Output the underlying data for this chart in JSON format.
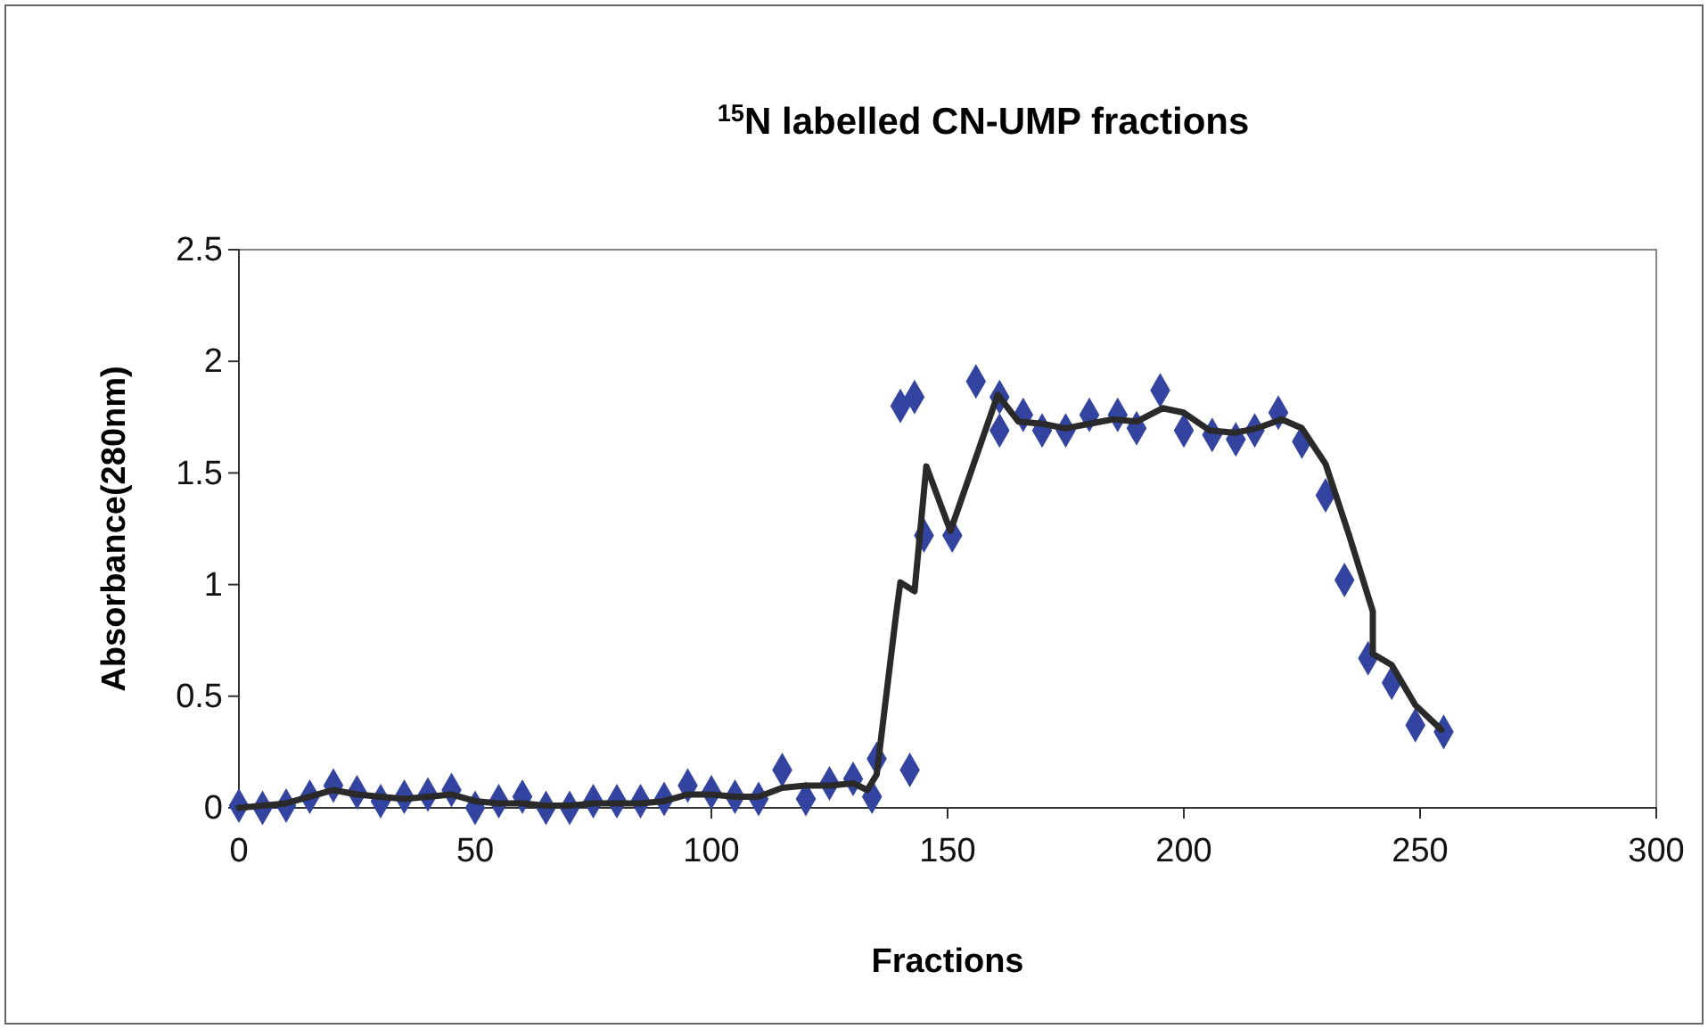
{
  "chart_data": {
    "type": "scatter",
    "title": "$^{15}$N labelled CN-UMP fractions",
    "xlabel": "Fractions",
    "ylabel": "Absorbance(280nm)",
    "xlim": [
      0,
      300
    ],
    "xticks": [
      0,
      50,
      100,
      150,
      200,
      250,
      300
    ],
    "ylim": [
      0,
      2.5
    ],
    "yticks": [
      0,
      0.5,
      1,
      1.5,
      2,
      2.5
    ],
    "grid": false,
    "series": [
      {
        "color": "#3344a0",
        "marker": "diamond",
        "x": [
          0,
          5,
          10,
          15,
          20,
          25,
          30,
          35,
          40,
          45,
          50,
          55,
          60,
          65,
          70,
          75,
          80,
          85,
          90,
          95,
          100,
          105,
          110,
          115,
          120,
          125,
          130,
          134,
          135,
          140,
          142,
          143,
          145,
          151,
          156,
          161,
          161,
          166,
          170,
          175,
          180,
          186,
          190,
          195,
          200,
          206,
          211,
          215,
          220,
          225,
          230,
          234,
          239,
          244,
          249,
          255
        ],
        "values": [
          0.01,
          0,
          0.01,
          0.05,
          0.1,
          0.07,
          0.03,
          0.05,
          0.06,
          0.08,
          0,
          0.03,
          0.05,
          0,
          0,
          0.03,
          0.03,
          0.03,
          0.04,
          0.1,
          0.07,
          0.05,
          0.04,
          0.17,
          0.04,
          0.11,
          0.13,
          0.05,
          0.22,
          1.8,
          0.17,
          1.84,
          1.22,
          1.22,
          1.91,
          1.84,
          1.69,
          1.76,
          1.69,
          1.69,
          1.76,
          1.76,
          1.7,
          1.87,
          1.69,
          1.67,
          1.65,
          1.69,
          1.77,
          1.64,
          1.4,
          1.02,
          0.67,
          0.56,
          0.37,
          0.34
        ]
      },
      {
        "type": "line",
        "color": "#2a2a2a",
        "marker": "none",
        "line_style": "solid",
        "x": [
          0,
          5,
          10,
          15,
          20,
          25,
          30,
          35,
          40,
          45,
          50,
          55,
          60,
          65,
          70,
          75,
          80,
          85,
          90,
          95,
          100,
          105,
          110,
          115,
          120,
          125,
          130,
          133,
          135,
          139,
          140,
          143,
          145.5,
          150.6,
          160.6,
          165,
          170,
          175,
          180,
          185,
          190,
          195.5,
          200,
          205.5,
          210.6,
          215.5,
          220.7,
          225,
          230,
          235,
          240,
          240,
          244,
          249,
          254.5
        ],
        "values": [
          0,
          0.01,
          0.02,
          0.05,
          0.08,
          0.06,
          0.05,
          0.04,
          0.05,
          0.06,
          0.03,
          0.02,
          0.02,
          0.01,
          0.01,
          0.02,
          0.02,
          0.02,
          0.03,
          0.06,
          0.06,
          0.05,
          0.05,
          0.09,
          0.1,
          0.1,
          0.11,
          0.08,
          0.15,
          0.85,
          1.01,
          0.97,
          1.53,
          1.24,
          1.85,
          1.73,
          1.72,
          1.7,
          1.72,
          1.74,
          1.73,
          1.79,
          1.77,
          1.69,
          1.68,
          1.7,
          1.74,
          1.7,
          1.54,
          1.22,
          0.88,
          0.69,
          0.64,
          0.46,
          0.35
        ]
      }
    ]
  }
}
